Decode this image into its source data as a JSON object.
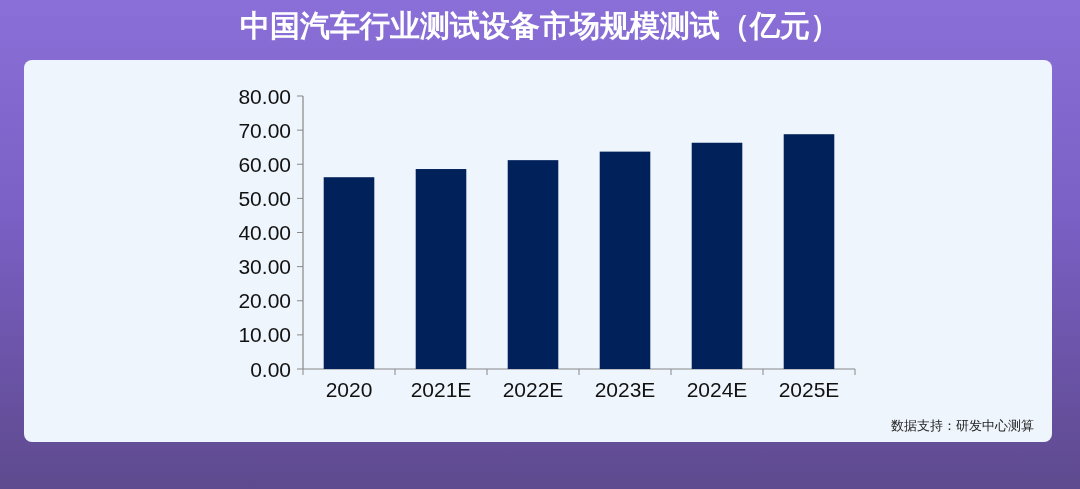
{
  "chart_data": {
    "type": "bar",
    "title": "中国汽车行业测试设备市场规模测试（亿元）",
    "categories": [
      "2020",
      "2021E",
      "2022E",
      "2023E",
      "2024E",
      "2025E"
    ],
    "values": [
      56.2,
      58.6,
      61.2,
      63.7,
      66.3,
      68.8
    ],
    "color": "#00215a",
    "ylim": [
      0,
      80
    ],
    "yticks": [
      {
        "value": 0,
        "label": "0.00"
      },
      {
        "value": 10,
        "label": "10.00"
      },
      {
        "value": 20,
        "label": "20.00"
      },
      {
        "value": 30,
        "label": "30.00"
      },
      {
        "value": 40,
        "label": "40.00"
      },
      {
        "value": 50,
        "label": "50.00"
      },
      {
        "value": 60,
        "label": "60.00"
      },
      {
        "value": 70,
        "label": "70.00"
      },
      {
        "value": 80,
        "label": "80.00"
      }
    ],
    "grid": false,
    "annotations": [
      "数据支持：研发中心测算"
    ]
  }
}
